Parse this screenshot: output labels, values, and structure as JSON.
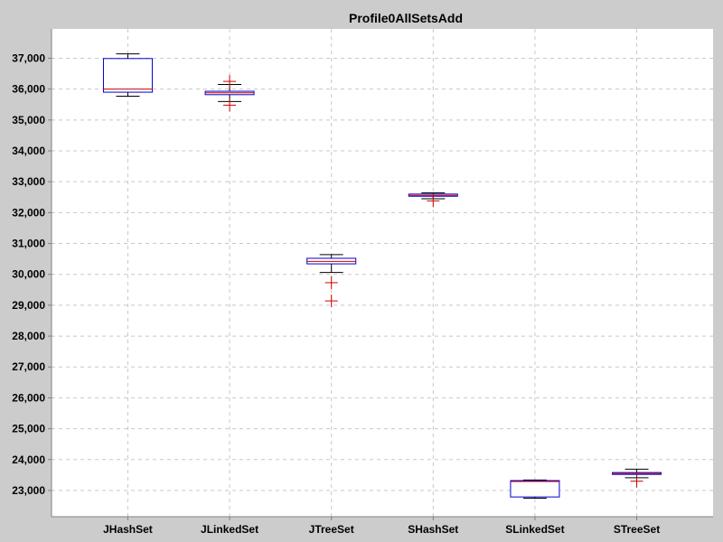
{
  "chart_data": {
    "type": "boxplot",
    "title": "Profile0AllSetsAdd",
    "xlabel": "",
    "ylabel": "",
    "ylim": [
      22150,
      37950
    ],
    "yticks": [
      23000,
      24000,
      25000,
      26000,
      27000,
      28000,
      29000,
      30000,
      31000,
      32000,
      33000,
      34000,
      35000,
      36000,
      37000
    ],
    "ytick_labels": [
      "23,000",
      "24,000",
      "25,000",
      "26,000",
      "27,000",
      "28,000",
      "29,000",
      "30,000",
      "31,000",
      "32,000",
      "33,000",
      "34,000",
      "35,000",
      "36,000",
      "37,000"
    ],
    "grid": true,
    "colors": {
      "background": "#cccccc",
      "plot": "#ffffff",
      "box": "#0000cc",
      "median": "#cc0000",
      "whisker": "#000000",
      "outlier": "#cc0000"
    },
    "categories": [
      "JHashSet",
      "JLinkedSet",
      "JTreeSet",
      "SHashSet",
      "SLinkedSet",
      "STreeSet"
    ],
    "boxes": [
      {
        "label": "JHashSet",
        "min": 35770,
        "q1": 35900,
        "median": 36000,
        "q3": 36990,
        "max": 37140,
        "outliers": []
      },
      {
        "label": "JLinkedSet",
        "min": 35600,
        "q1": 35820,
        "median": 35880,
        "q3": 35930,
        "max": 36150,
        "outliers": [
          36250,
          35480
        ]
      },
      {
        "label": "JTreeSet",
        "min": 30060,
        "q1": 30340,
        "median": 30420,
        "q3": 30520,
        "max": 30640,
        "outliers": [
          29730,
          29140
        ]
      },
      {
        "label": "SHashSet",
        "min": 32450,
        "q1": 32530,
        "median": 32560,
        "q3": 32600,
        "max": 32640,
        "outliers": [
          32380
        ]
      },
      {
        "label": "SLinkedSet",
        "min": 22750,
        "q1": 22790,
        "median": 23290,
        "q3": 23320,
        "max": 23340,
        "outliers": []
      },
      {
        "label": "STreeSet",
        "min": 23410,
        "q1": 23520,
        "median": 23550,
        "q3": 23580,
        "max": 23690,
        "outliers": [
          23300
        ]
      }
    ]
  }
}
